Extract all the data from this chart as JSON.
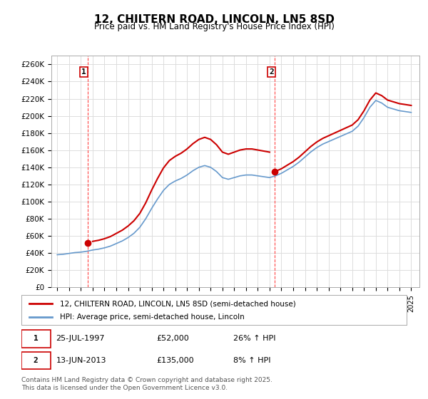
{
  "title": "12, CHILTERN ROAD, LINCOLN, LN5 8SD",
  "subtitle": "Price paid vs. HM Land Registry's House Price Index (HPI)",
  "ylabel": "",
  "ylim": [
    0,
    270000
  ],
  "yticks": [
    0,
    20000,
    40000,
    60000,
    80000,
    100000,
    120000,
    140000,
    160000,
    180000,
    200000,
    220000,
    240000,
    260000
  ],
  "ytick_labels": [
    "£0",
    "£20K",
    "£40K",
    "£60K",
    "£80K",
    "£100K",
    "£120K",
    "£140K",
    "£160K",
    "£180K",
    "£200K",
    "£220K",
    "£240K",
    "£260K"
  ],
  "sale1_date": 1997.57,
  "sale1_price": 52000,
  "sale1_label": "1",
  "sale2_date": 2013.45,
  "sale2_price": 135000,
  "sale2_label": "2",
  "line_color_property": "#cc0000",
  "line_color_hpi": "#6699cc",
  "marker_color": "#cc0000",
  "vline_color": "#ff4444",
  "grid_color": "#dddddd",
  "background_color": "#ffffff",
  "legend_label_property": "12, CHILTERN ROAD, LINCOLN, LN5 8SD (semi-detached house)",
  "legend_label_hpi": "HPI: Average price, semi-detached house, Lincoln",
  "annotation1_text": "25-JUL-1997        £52,000        26% ↑ HPI",
  "annotation2_text": "13-JUN-2013        £135,000        8% ↑ HPI",
  "footer_text": "Contains HM Land Registry data © Crown copyright and database right 2025.\nThis data is licensed under the Open Government Licence v3.0.",
  "xlim_start": 1994.5,
  "xlim_end": 2025.7,
  "xticks": [
    1995,
    1996,
    1997,
    1998,
    1999,
    2000,
    2001,
    2002,
    2003,
    2004,
    2005,
    2006,
    2007,
    2008,
    2009,
    2010,
    2011,
    2012,
    2013,
    2014,
    2015,
    2016,
    2017,
    2018,
    2019,
    2020,
    2021,
    2022,
    2023,
    2024,
    2025
  ]
}
